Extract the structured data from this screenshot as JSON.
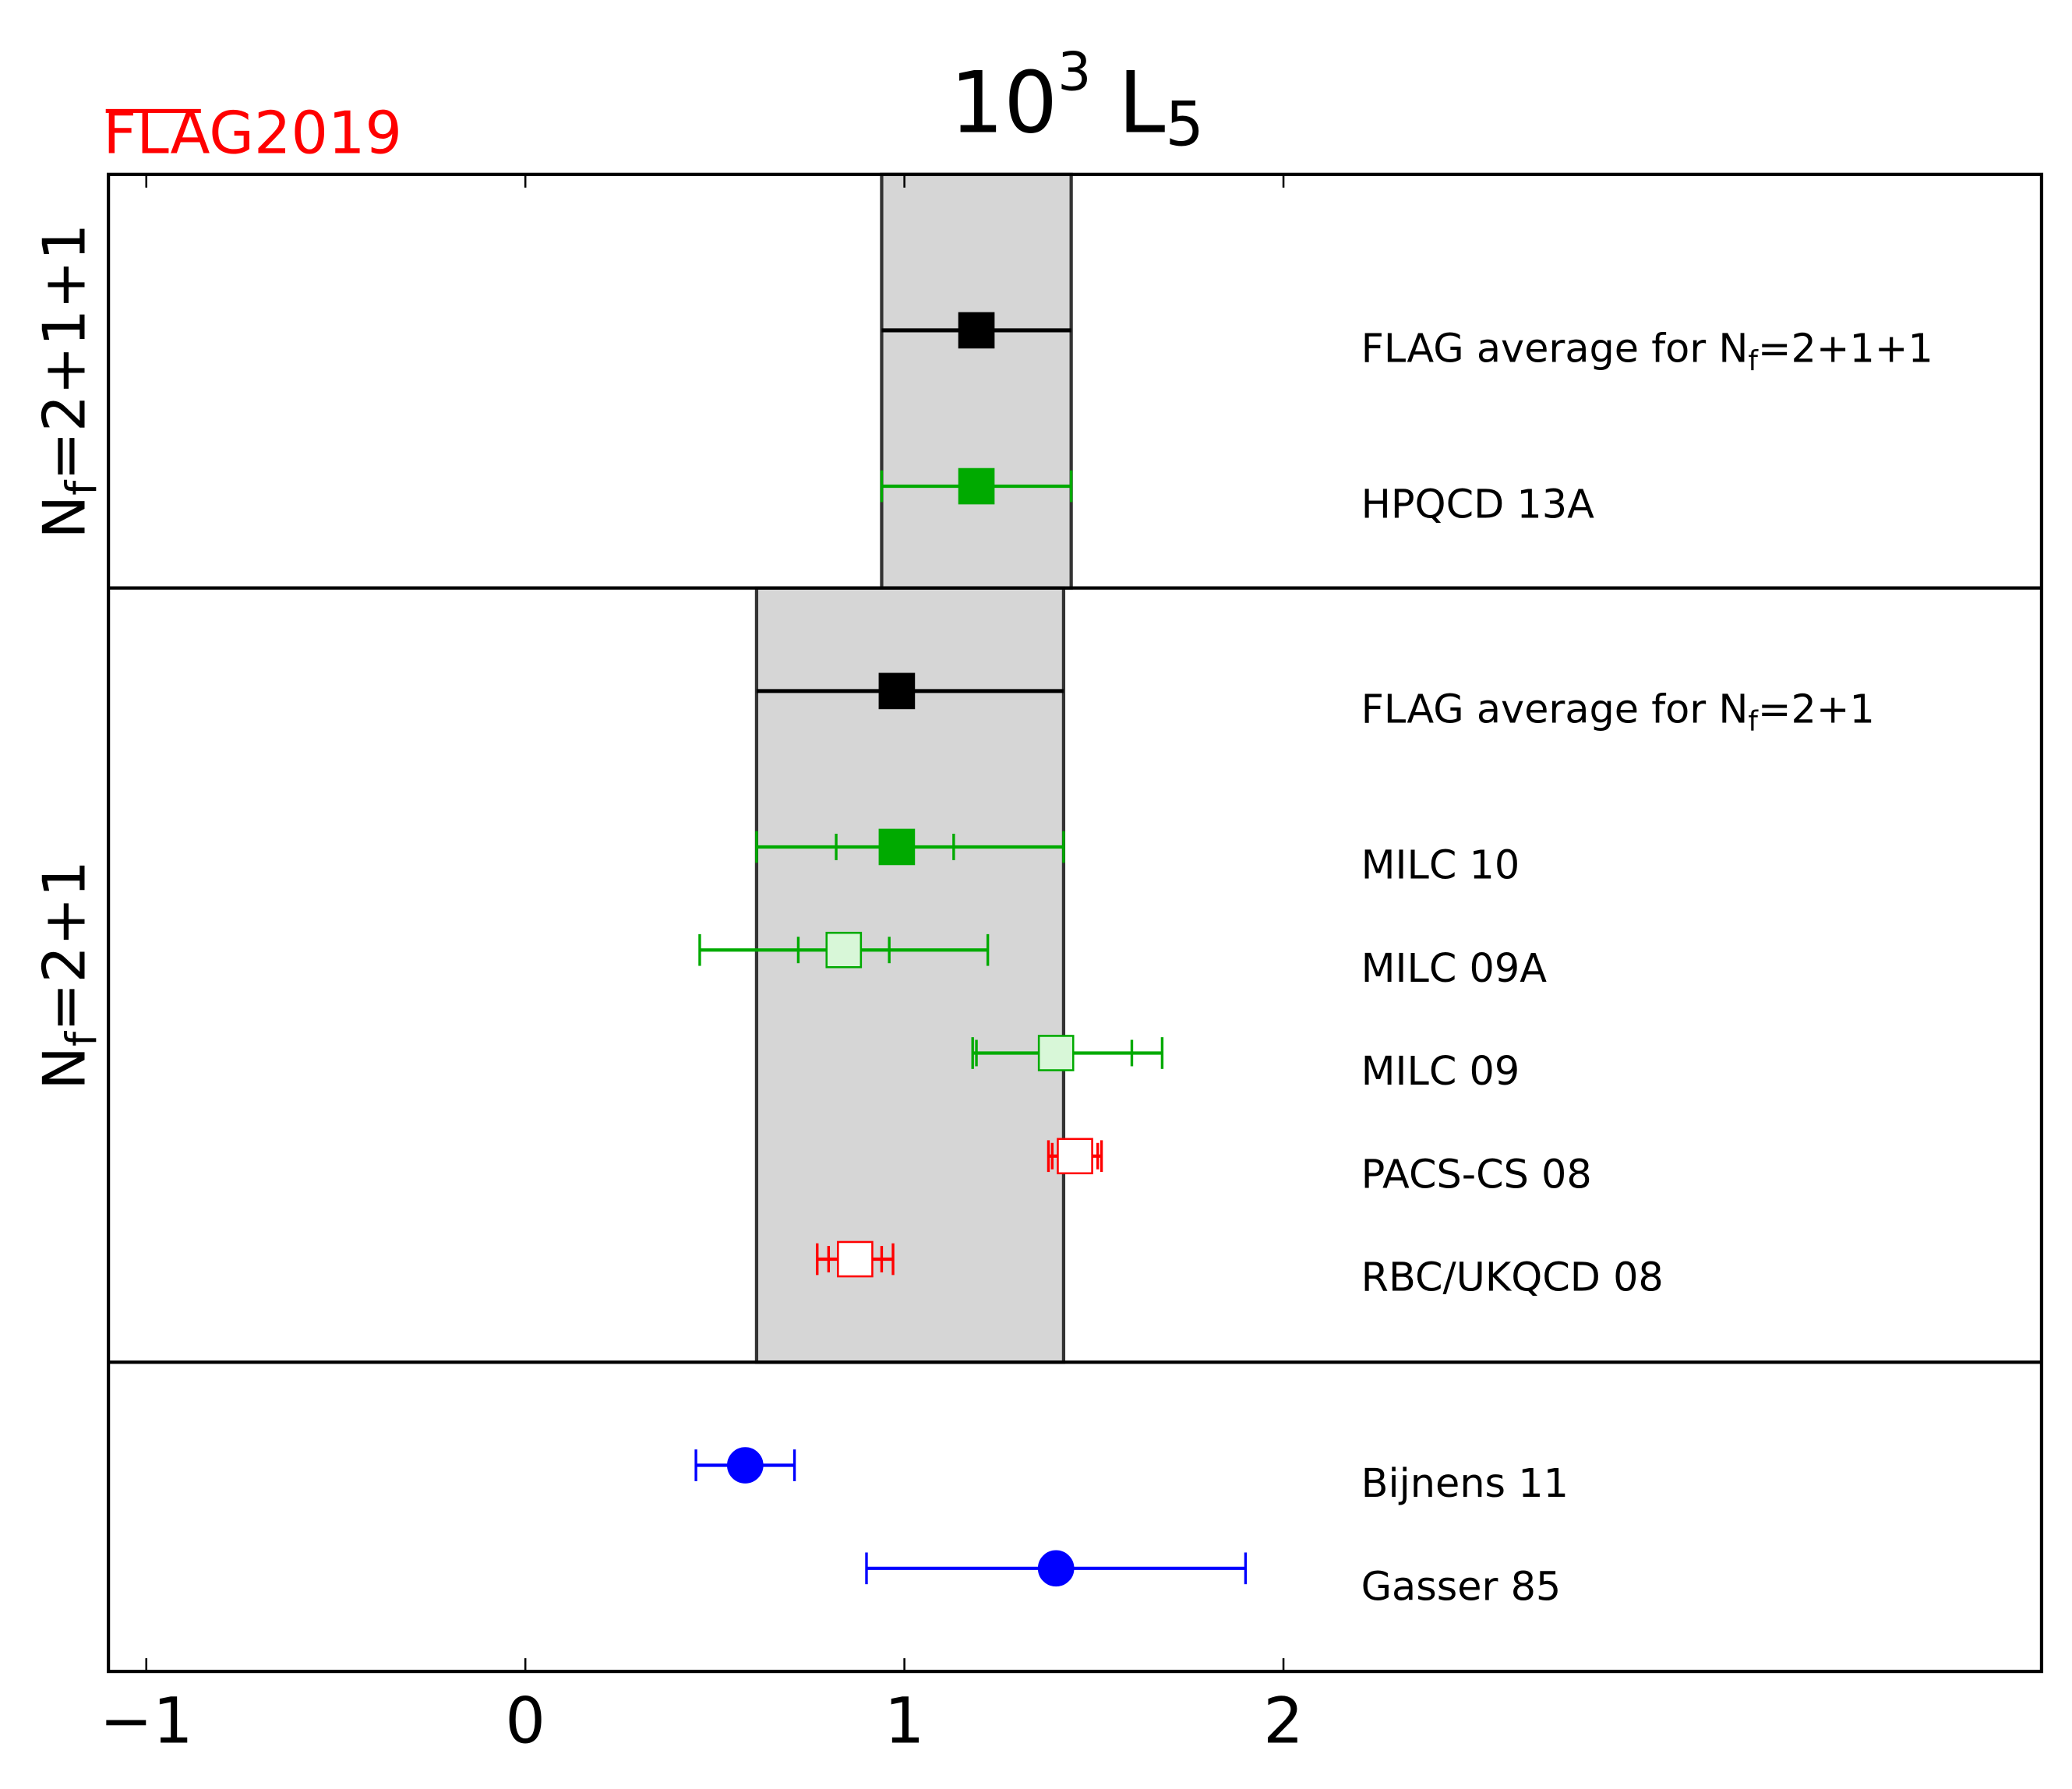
{
  "chart_data": {
    "type": "forest",
    "logo": "FLAG2019",
    "title": {
      "base": "10",
      "sup": "3",
      "main": " L",
      "sub": "5"
    },
    "xlim": [
      -1.1,
      4.0
    ],
    "xticks": [
      {
        "value": -1,
        "label": "−1"
      },
      0,
      1,
      2
    ],
    "groups": [
      {
        "label": {
          "main": "N",
          "sub": "f",
          "tail": "=2+1+1"
        },
        "band_color": "#d6d6d6",
        "entries": [
          {
            "name": {
              "main": "FLAG average for N",
              "sub": "f",
              "tail": "=2+1+1"
            },
            "value": 1.19,
            "err_minus": 0.25,
            "err_plus": 0.25,
            "color": "#000000",
            "fill": "#000000",
            "marker": "square",
            "caps": false,
            "average": true
          },
          {
            "name": {
              "main": "HPQCD 13A"
            },
            "value": 1.19,
            "err_minus": 0.25,
            "err_plus": 0.25,
            "color": "#00aa00",
            "fill": "#00aa00",
            "marker": "square",
            "caps": true
          }
        ]
      },
      {
        "label": {
          "main": "N",
          "sub": "f",
          "tail": "=2+1"
        },
        "band_color": "#d6d6d6",
        "entries": [
          {
            "name": {
              "main": "FLAG average for N",
              "sub": "f",
              "tail": "=2+1"
            },
            "value": 0.98,
            "err_minus": 0.37,
            "err_plus": 0.44,
            "color": "#000000",
            "fill": "#000000",
            "marker": "square",
            "caps": false,
            "average": true
          },
          {
            "name": {
              "main": "MILC 10"
            },
            "value": 0.98,
            "err_minus": 0.37,
            "err_plus": 0.44,
            "stat_minus": 0.16,
            "stat_plus": 0.15,
            "color": "#00aa00",
            "fill": "#00aa00",
            "marker": "square",
            "caps": true
          },
          {
            "name": {
              "main": "MILC 09A"
            },
            "value": 0.84,
            "err_minus": 0.38,
            "err_plus": 0.38,
            "stat_minus": 0.12,
            "stat_plus": 0.12,
            "color": "#00aa00",
            "fill": "#d8f7d8",
            "marker": "square",
            "caps": true
          },
          {
            "name": {
              "main": "MILC 09"
            },
            "value": 1.4,
            "err_minus": 0.22,
            "err_plus": 0.28,
            "stat_minus": 0.21,
            "stat_plus": 0.2,
            "color": "#00aa00",
            "fill": "#d8f7d8",
            "marker": "square",
            "caps": true
          },
          {
            "name": {
              "main": "PACS-CS 08"
            },
            "value": 1.45,
            "err_minus": 0.07,
            "err_plus": 0.07,
            "stat_minus": 0.06,
            "stat_plus": 0.06,
            "color": "#ff0000",
            "fill": "#ffffff",
            "marker": "square",
            "caps": true
          },
          {
            "name": {
              "main": "RBC/UKQCD 08"
            },
            "value": 0.87,
            "err_minus": 0.1,
            "err_plus": 0.1,
            "stat_minus": 0.07,
            "stat_plus": 0.07,
            "color": "#ff0000",
            "fill": "#ffffff",
            "marker": "square",
            "caps": true
          }
        ]
      },
      {
        "entries": [
          {
            "name": {
              "main": "Bijnens 11"
            },
            "value": 0.58,
            "err_minus": 0.13,
            "err_plus": 0.13,
            "color": "#0000ff",
            "fill": "#0000ff",
            "marker": "circle",
            "caps": true
          },
          {
            "name": {
              "main": "Gasser 85"
            },
            "value": 1.4,
            "err_minus": 0.5,
            "err_plus": 0.5,
            "color": "#0000ff",
            "fill": "#0000ff",
            "marker": "circle",
            "caps": true
          }
        ]
      }
    ]
  }
}
